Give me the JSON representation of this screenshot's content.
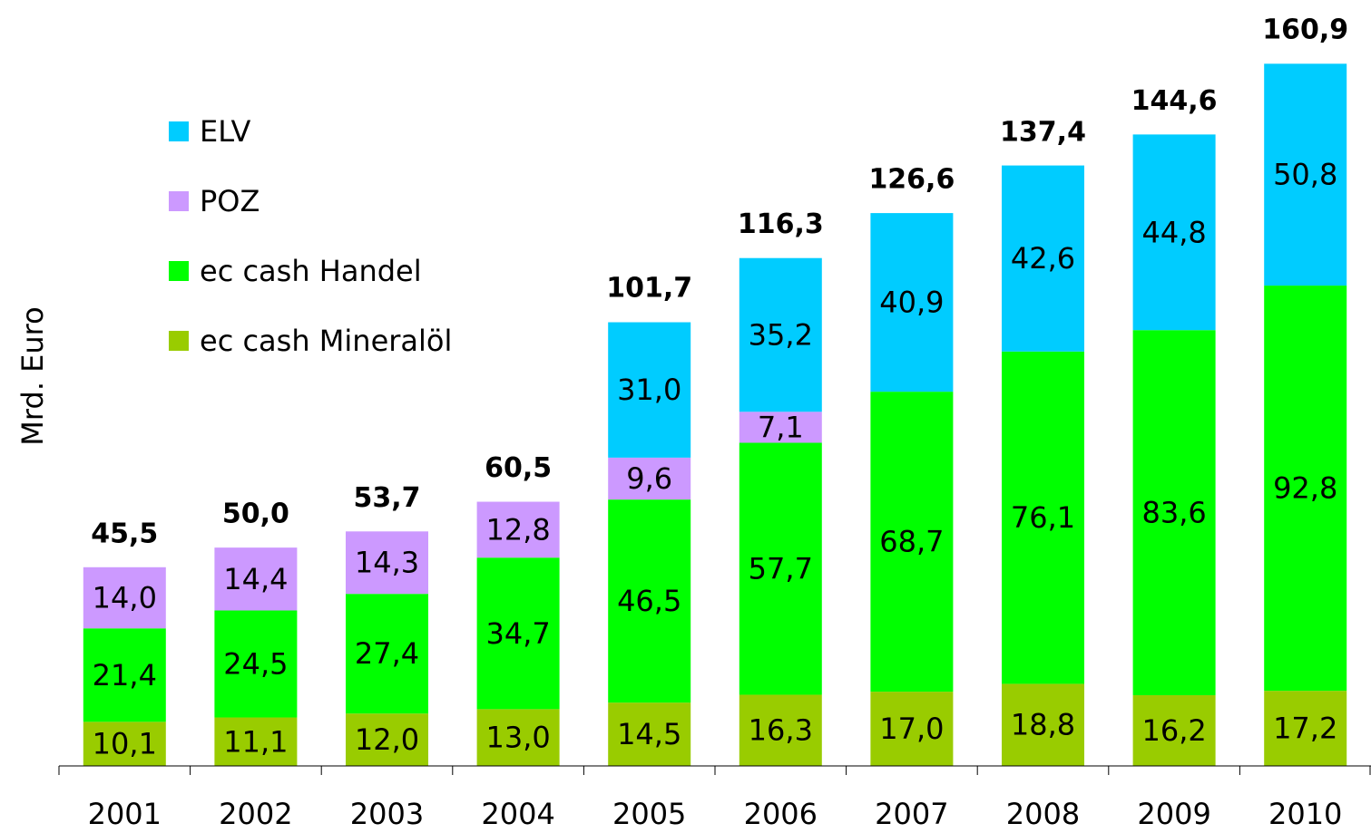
{
  "chart_data": {
    "type": "stacked_bar",
    "y_label": "Mrd. Euro",
    "categories": [
      "2001",
      "2002",
      "2003",
      "2004",
      "2005",
      "2006",
      "2007",
      "2008",
      "2009",
      "2010"
    ],
    "series": [
      {
        "name": "ec cash Mineralöl",
        "color": "#99cc00",
        "values": [
          10.1,
          11.1,
          12.0,
          13.0,
          14.5,
          16.3,
          17.0,
          18.8,
          16.2,
          17.2
        ],
        "value_labels": [
          "10,1",
          "11,1",
          "12,0",
          "13,0",
          "14,5",
          "16,3",
          "17,0",
          "18,8",
          "16,2",
          "17,2"
        ]
      },
      {
        "name": "ec cash Handel",
        "color": "#00ff00",
        "values": [
          21.4,
          24.5,
          27.4,
          34.7,
          46.5,
          57.7,
          68.7,
          76.1,
          83.6,
          92.8
        ],
        "value_labels": [
          "21,4",
          "24,5",
          "27,4",
          "34,7",
          "46,5",
          "57,7",
          "68,7",
          "76,1",
          "83,6",
          "92,8"
        ]
      },
      {
        "name": "POZ",
        "color": "#cc99ff",
        "values": [
          14.0,
          14.4,
          14.3,
          12.8,
          9.6,
          7.1,
          null,
          null,
          null,
          null
        ],
        "value_labels": [
          "14,0",
          "14,4",
          "14,3",
          "12,8",
          "9,6",
          "7,1",
          null,
          null,
          null,
          null
        ]
      },
      {
        "name": "ELV",
        "color": "#00ccff",
        "values": [
          null,
          null,
          null,
          null,
          31.0,
          35.2,
          40.9,
          42.6,
          44.8,
          50.8
        ],
        "value_labels": [
          null,
          null,
          null,
          null,
          "31,0",
          "35,2",
          "40,9",
          "42,6",
          "44,8",
          "50,8"
        ]
      }
    ],
    "totals": [
      45.5,
      50.0,
      53.7,
      60.5,
      101.7,
      116.3,
      126.6,
      137.4,
      144.6,
      160.9
    ],
    "total_labels": [
      "45,5",
      "50,0",
      "53,7",
      "60,5",
      "101,7",
      "116,3",
      "126,6",
      "137,4",
      "144,6",
      "160,9"
    ],
    "ylim": [
      0,
      170
    ],
    "legend": "top-left"
  }
}
